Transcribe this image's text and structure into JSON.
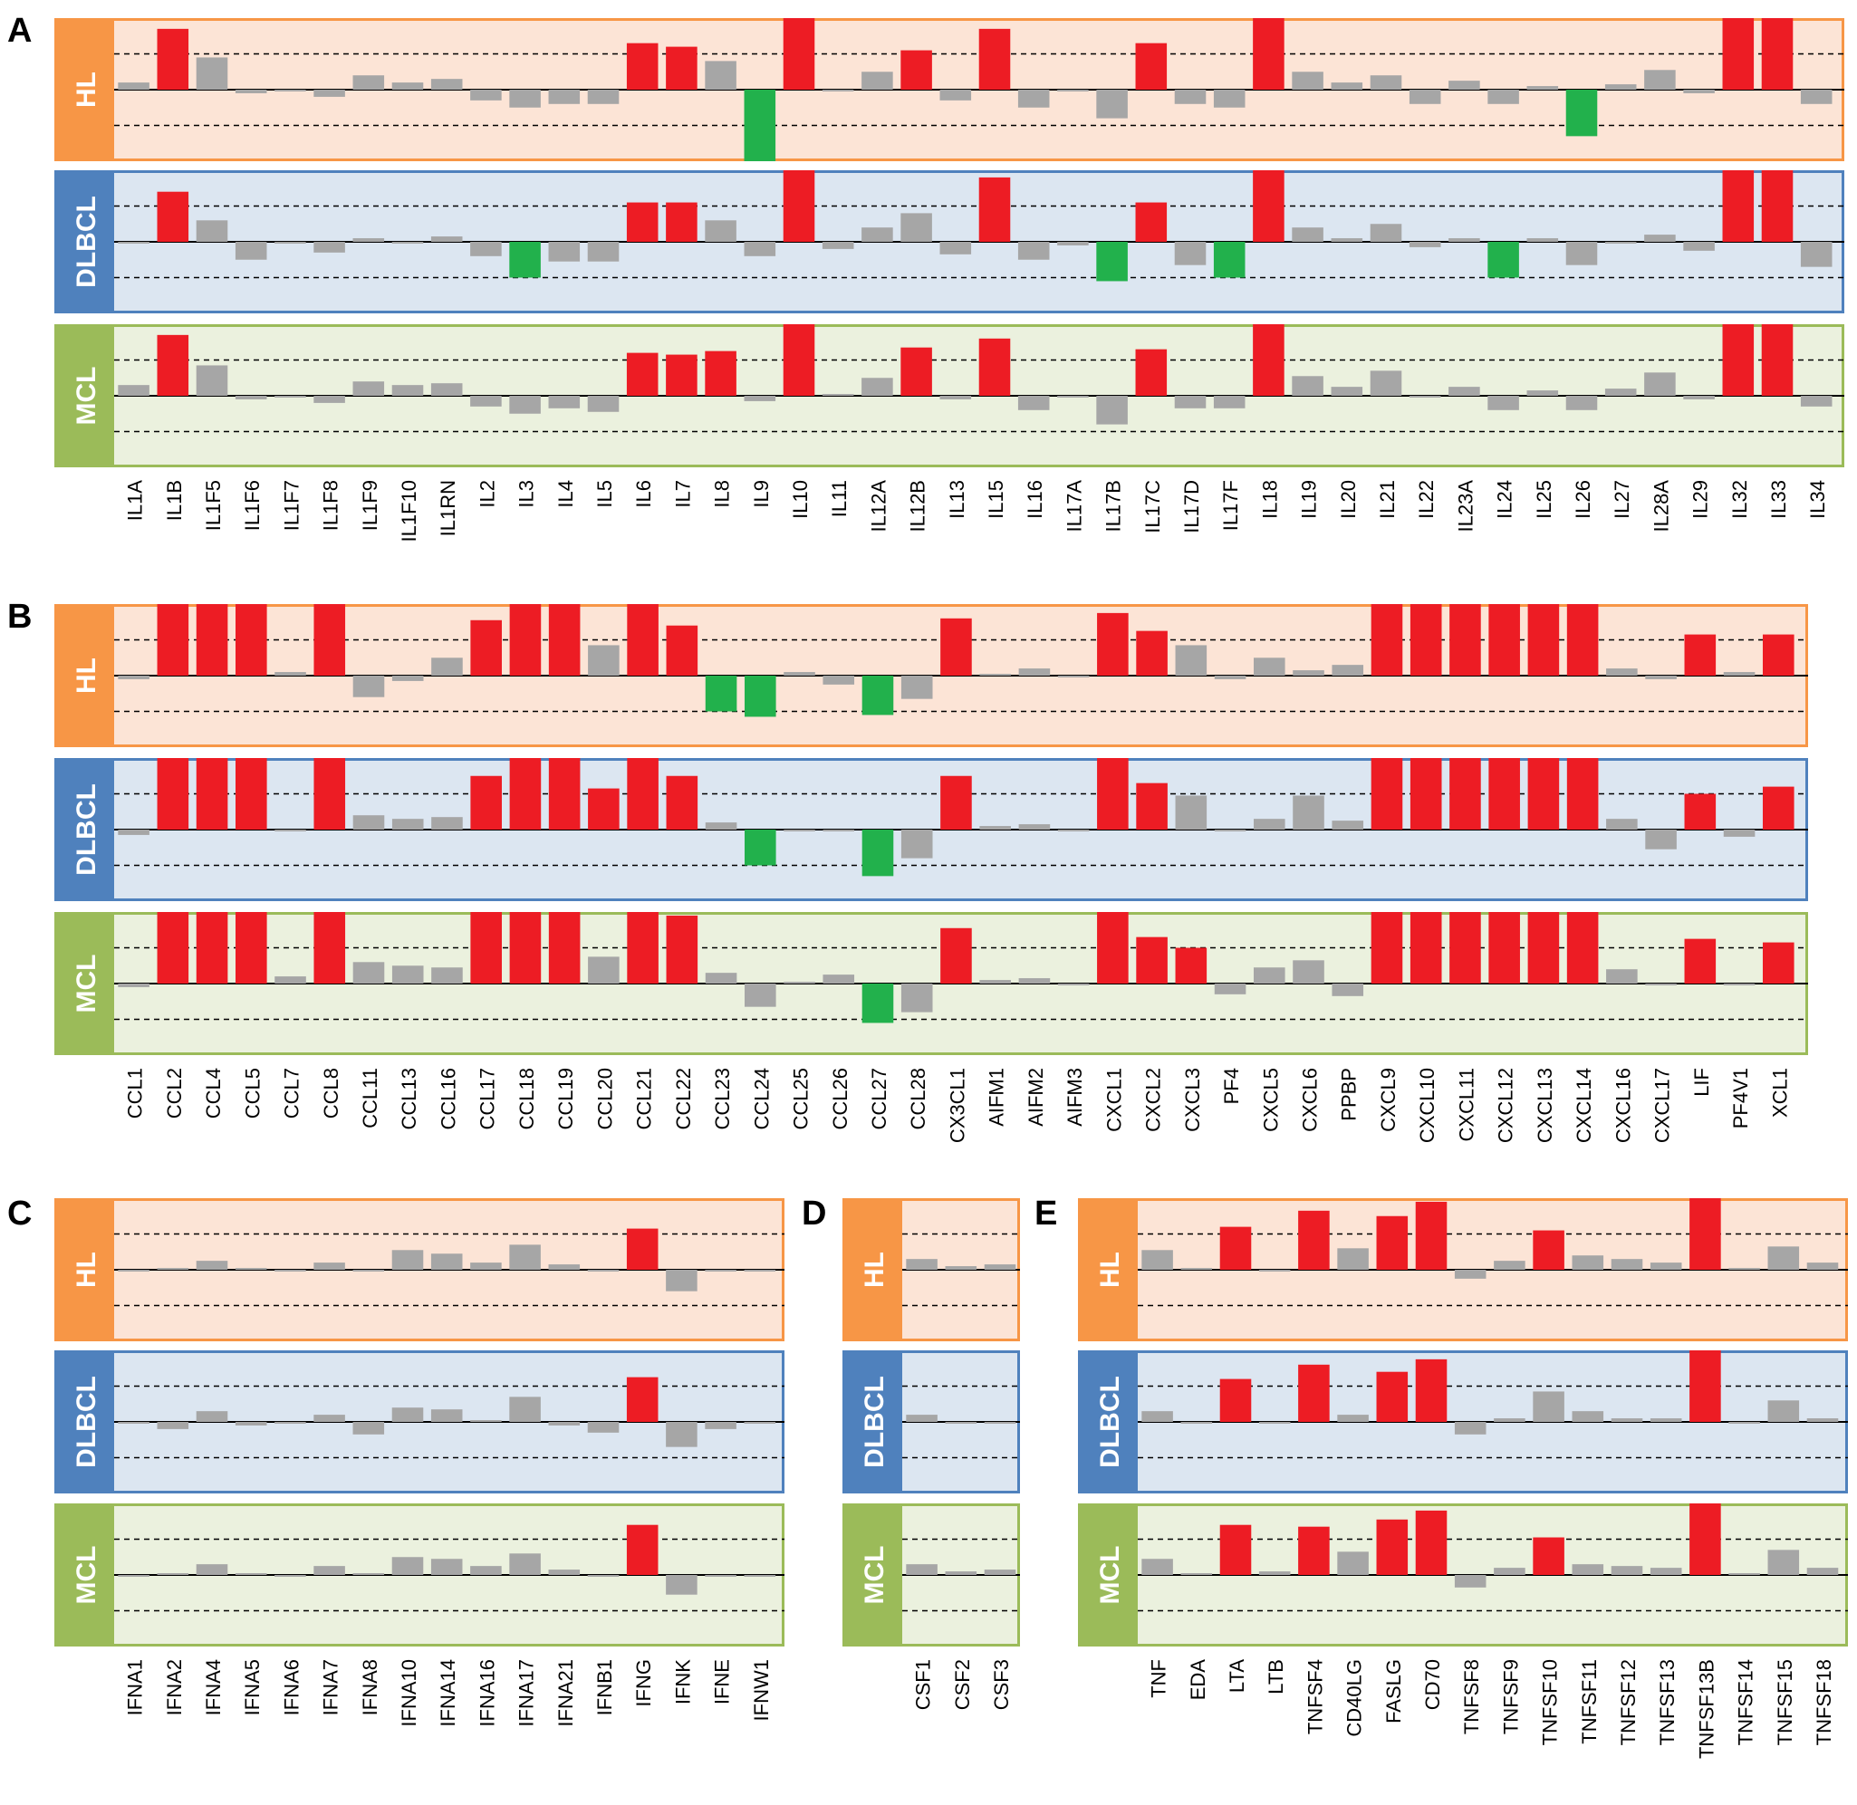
{
  "colors": {
    "HL": {
      "bg": "#fce4d6",
      "border": "#f79646",
      "tab": "#f79646"
    },
    "DLBCL": {
      "bg": "#dce6f1",
      "border": "#4f81bd",
      "tab": "#4f81bd"
    },
    "MCL": {
      "bg": "#ebf1de",
      "border": "#9bbb59",
      "tab": "#9bbb59"
    },
    "up": "#ed1c24",
    "down": "#22b14c",
    "neutral": "#a6a6a6"
  },
  "chart_data": [
    {
      "type": "bar",
      "panel_label": "A",
      "categories": [
        "IL1A",
        "IL1B",
        "IL1F5",
        "IL1F6",
        "IL1F7",
        "IL1F8",
        "IL1F9",
        "IL1F10",
        "IL1RN",
        "IL2",
        "IL3",
        "IL4",
        "IL5",
        "IL6",
        "IL7",
        "IL8",
        "IL9",
        "IL10",
        "IL11",
        "IL12A",
        "IL12B",
        "IL13",
        "IL15",
        "IL16",
        "IL17A",
        "IL17B",
        "IL17C",
        "IL17D",
        "IL17F",
        "IL18",
        "IL19",
        "IL20",
        "IL21",
        "IL22",
        "IL23A",
        "IL24",
        "IL25",
        "IL26",
        "IL27",
        "IL28A",
        "IL29",
        "IL32",
        "IL33",
        "IL34"
      ],
      "ylim": [
        -2,
        2
      ],
      "series": [
        {
          "name": "HL",
          "values": [
            0.2,
            1.7,
            0.9,
            -0.1,
            0,
            -0.2,
            0.4,
            0.2,
            0.3,
            -0.3,
            -0.5,
            -0.4,
            -0.4,
            1.3,
            1.2,
            0.8,
            -2,
            2,
            0,
            0.5,
            1.1,
            -0.3,
            1.7,
            -0.5,
            0,
            -0.8,
            1.3,
            -0.4,
            -0.5,
            2,
            0.5,
            0.2,
            0.4,
            -0.4,
            0.25,
            -0.4,
            0.1,
            -1.3,
            0.15,
            0.55,
            -0.1,
            2,
            2,
            -0.4
          ]
        },
        {
          "name": "DLBCL",
          "values": [
            -0.05,
            1.4,
            0.6,
            -0.5,
            0,
            -0.3,
            0.1,
            0,
            0.15,
            -0.4,
            -1,
            -0.55,
            -0.55,
            1.1,
            1.1,
            0.6,
            -0.4,
            2,
            -0.2,
            0.4,
            0.8,
            -0.35,
            1.8,
            -0.5,
            -0.1,
            -1.1,
            1.1,
            -0.65,
            -1,
            2,
            0.4,
            0.1,
            0.5,
            -0.15,
            0.1,
            -1,
            0.1,
            -0.65,
            0,
            0.2,
            -0.25,
            2,
            2,
            -0.7
          ]
        },
        {
          "name": "MCL",
          "values": [
            0.3,
            1.7,
            0.85,
            -0.1,
            0,
            -0.2,
            0.4,
            0.3,
            0.35,
            -0.3,
            -0.5,
            -0.35,
            -0.45,
            1.2,
            1.15,
            1.25,
            -0.15,
            2,
            0.05,
            0.5,
            1.35,
            -0.1,
            1.6,
            -0.4,
            0,
            -0.8,
            1.3,
            -0.35,
            -0.35,
            2,
            0.55,
            0.25,
            0.7,
            0,
            0.25,
            -0.4,
            0.15,
            -0.4,
            0.2,
            0.65,
            -0.1,
            2,
            2,
            -0.3
          ]
        }
      ]
    },
    {
      "type": "bar",
      "panel_label": "B",
      "categories": [
        "CCL1",
        "CCL2",
        "CCL4",
        "CCL5",
        "CCL7",
        "CCL8",
        "CCL11",
        "CCL13",
        "CCL16",
        "CCL17",
        "CCL18",
        "CCL19",
        "CCL20",
        "CCL21",
        "CCL22",
        "CCL23",
        "CCL24",
        "CCL25",
        "CCL26",
        "CCL27",
        "CCL28",
        "CX3CL1",
        "AIFM1",
        "AIFM2",
        "AIFM3",
        "CXCL1",
        "CXCL2",
        "CXCL3",
        "PF4",
        "CXCL5",
        "CXCL6",
        "PPBP",
        "CXCL9",
        "CXCL10",
        "CXCL11",
        "CXCL12",
        "CXCL13",
        "CXCL14",
        "CXCL16",
        "CXCL17",
        "LIF",
        "PF4V1",
        "XCL1"
      ],
      "ylim": [
        -2,
        2
      ],
      "series": [
        {
          "name": "HL",
          "values": [
            -0.1,
            2,
            2,
            2,
            0.1,
            2,
            -0.6,
            -0.15,
            0.5,
            1.55,
            2,
            2,
            0.85,
            2,
            1.4,
            -1,
            -1.15,
            0.1,
            -0.25,
            -1.1,
            -0.65,
            1.6,
            0.05,
            0.2,
            0,
            1.75,
            1.25,
            0.85,
            -0.1,
            0.5,
            0.15,
            0.3,
            2,
            2,
            2,
            2,
            2,
            2,
            0.2,
            -0.1,
            1.15,
            0.1,
            1.15
          ]
        },
        {
          "name": "DLBCL",
          "values": [
            -0.15,
            2,
            2,
            2,
            -0.05,
            2,
            0.4,
            0.3,
            0.35,
            1.5,
            2,
            2,
            1.15,
            2,
            1.5,
            0.2,
            -1,
            0,
            0,
            -1.3,
            -0.8,
            1.5,
            0.1,
            0.15,
            0,
            2,
            1.3,
            0.95,
            -0.05,
            0.3,
            0.95,
            0.25,
            2,
            2,
            2,
            2,
            2,
            2,
            0.3,
            -0.55,
            1,
            -0.2,
            1.2
          ]
        },
        {
          "name": "MCL",
          "values": [
            -0.1,
            2,
            2,
            2,
            0.2,
            2,
            0.6,
            0.5,
            0.45,
            2,
            2,
            2,
            0.75,
            2,
            1.9,
            0.3,
            -0.65,
            0.05,
            0.25,
            -1.1,
            -0.8,
            1.55,
            0.1,
            0.15,
            0,
            2,
            1.3,
            1.0,
            -0.3,
            0.45,
            0.65,
            -0.35,
            2,
            2,
            2,
            2,
            2,
            2,
            0.4,
            0,
            1.25,
            0,
            1.15
          ]
        }
      ]
    },
    {
      "type": "bar",
      "panel_label": "C",
      "categories": [
        "IFNA1",
        "IFNA2",
        "IFNA4",
        "IFNA5",
        "IFNA6",
        "IFNA7",
        "IFNA8",
        "IFNA10",
        "IFNA14",
        "IFNA16",
        "IFNA17",
        "IFNA21",
        "IFNB1",
        "IFNG",
        "IFNK",
        "IFNE",
        "IFNW1"
      ],
      "ylim": [
        -2,
        2
      ],
      "series": [
        {
          "name": "HL",
          "values": [
            0,
            0.05,
            0.25,
            0.05,
            0,
            0.2,
            -0.05,
            0.55,
            0.45,
            0.2,
            0.7,
            0.15,
            0,
            1.15,
            -0.6,
            0,
            0
          ]
        },
        {
          "name": "DLBCL",
          "values": [
            0,
            -0.2,
            0.3,
            -0.1,
            -0.05,
            0.2,
            -0.35,
            0.4,
            0.35,
            0.05,
            0.7,
            -0.1,
            -0.3,
            1.25,
            -0.7,
            -0.2,
            0
          ]
        },
        {
          "name": "MCL",
          "values": [
            0,
            0.05,
            0.3,
            0.05,
            0,
            0.25,
            0.05,
            0.5,
            0.45,
            0.25,
            0.6,
            0.15,
            0,
            1.4,
            -0.55,
            0,
            0
          ]
        }
      ]
    },
    {
      "type": "bar",
      "panel_label": "D",
      "categories": [
        "CSF1",
        "CSF2",
        "CSF3"
      ],
      "ylim": [
        -2,
        2
      ],
      "series": [
        {
          "name": "HL",
          "values": [
            0.3,
            0.1,
            0.15
          ]
        },
        {
          "name": "DLBCL",
          "values": [
            0.2,
            0,
            0
          ]
        },
        {
          "name": "MCL",
          "values": [
            0.3,
            0.1,
            0.15
          ]
        }
      ]
    },
    {
      "type": "bar",
      "panel_label": "E",
      "categories": [
        "TNF",
        "EDA",
        "LTA",
        "LTB",
        "TNFSF4",
        "CD40LG",
        "FASLG",
        "CD70",
        "TNFSF8",
        "TNFSF9",
        "TNFSF10",
        "TNFSF11",
        "TNFSF12",
        "TNFSF13",
        "TNFSF13B",
        "TNFSF14",
        "TNFSF15",
        "TNFSF18"
      ],
      "ylim": [
        -2,
        2
      ],
      "series": [
        {
          "name": "HL",
          "values": [
            0.55,
            0.05,
            1.2,
            0,
            1.65,
            0.6,
            1.5,
            1.9,
            -0.25,
            0.25,
            1.1,
            0.4,
            0.3,
            0.2,
            2,
            0.05,
            0.65,
            0.2
          ]
        },
        {
          "name": "DLBCL",
          "values": [
            0.3,
            0,
            1.2,
            0,
            1.6,
            0.2,
            1.4,
            1.75,
            -0.35,
            0.1,
            0.85,
            0.3,
            0.1,
            0.1,
            2,
            -0.05,
            0.6,
            0.1
          ]
        },
        {
          "name": "MCL",
          "values": [
            0.45,
            0.05,
            1.4,
            0.1,
            1.35,
            0.65,
            1.55,
            1.8,
            -0.35,
            0.2,
            1.05,
            0.3,
            0.25,
            0.2,
            2,
            0.05,
            0.7,
            0.2
          ]
        }
      ]
    }
  ]
}
